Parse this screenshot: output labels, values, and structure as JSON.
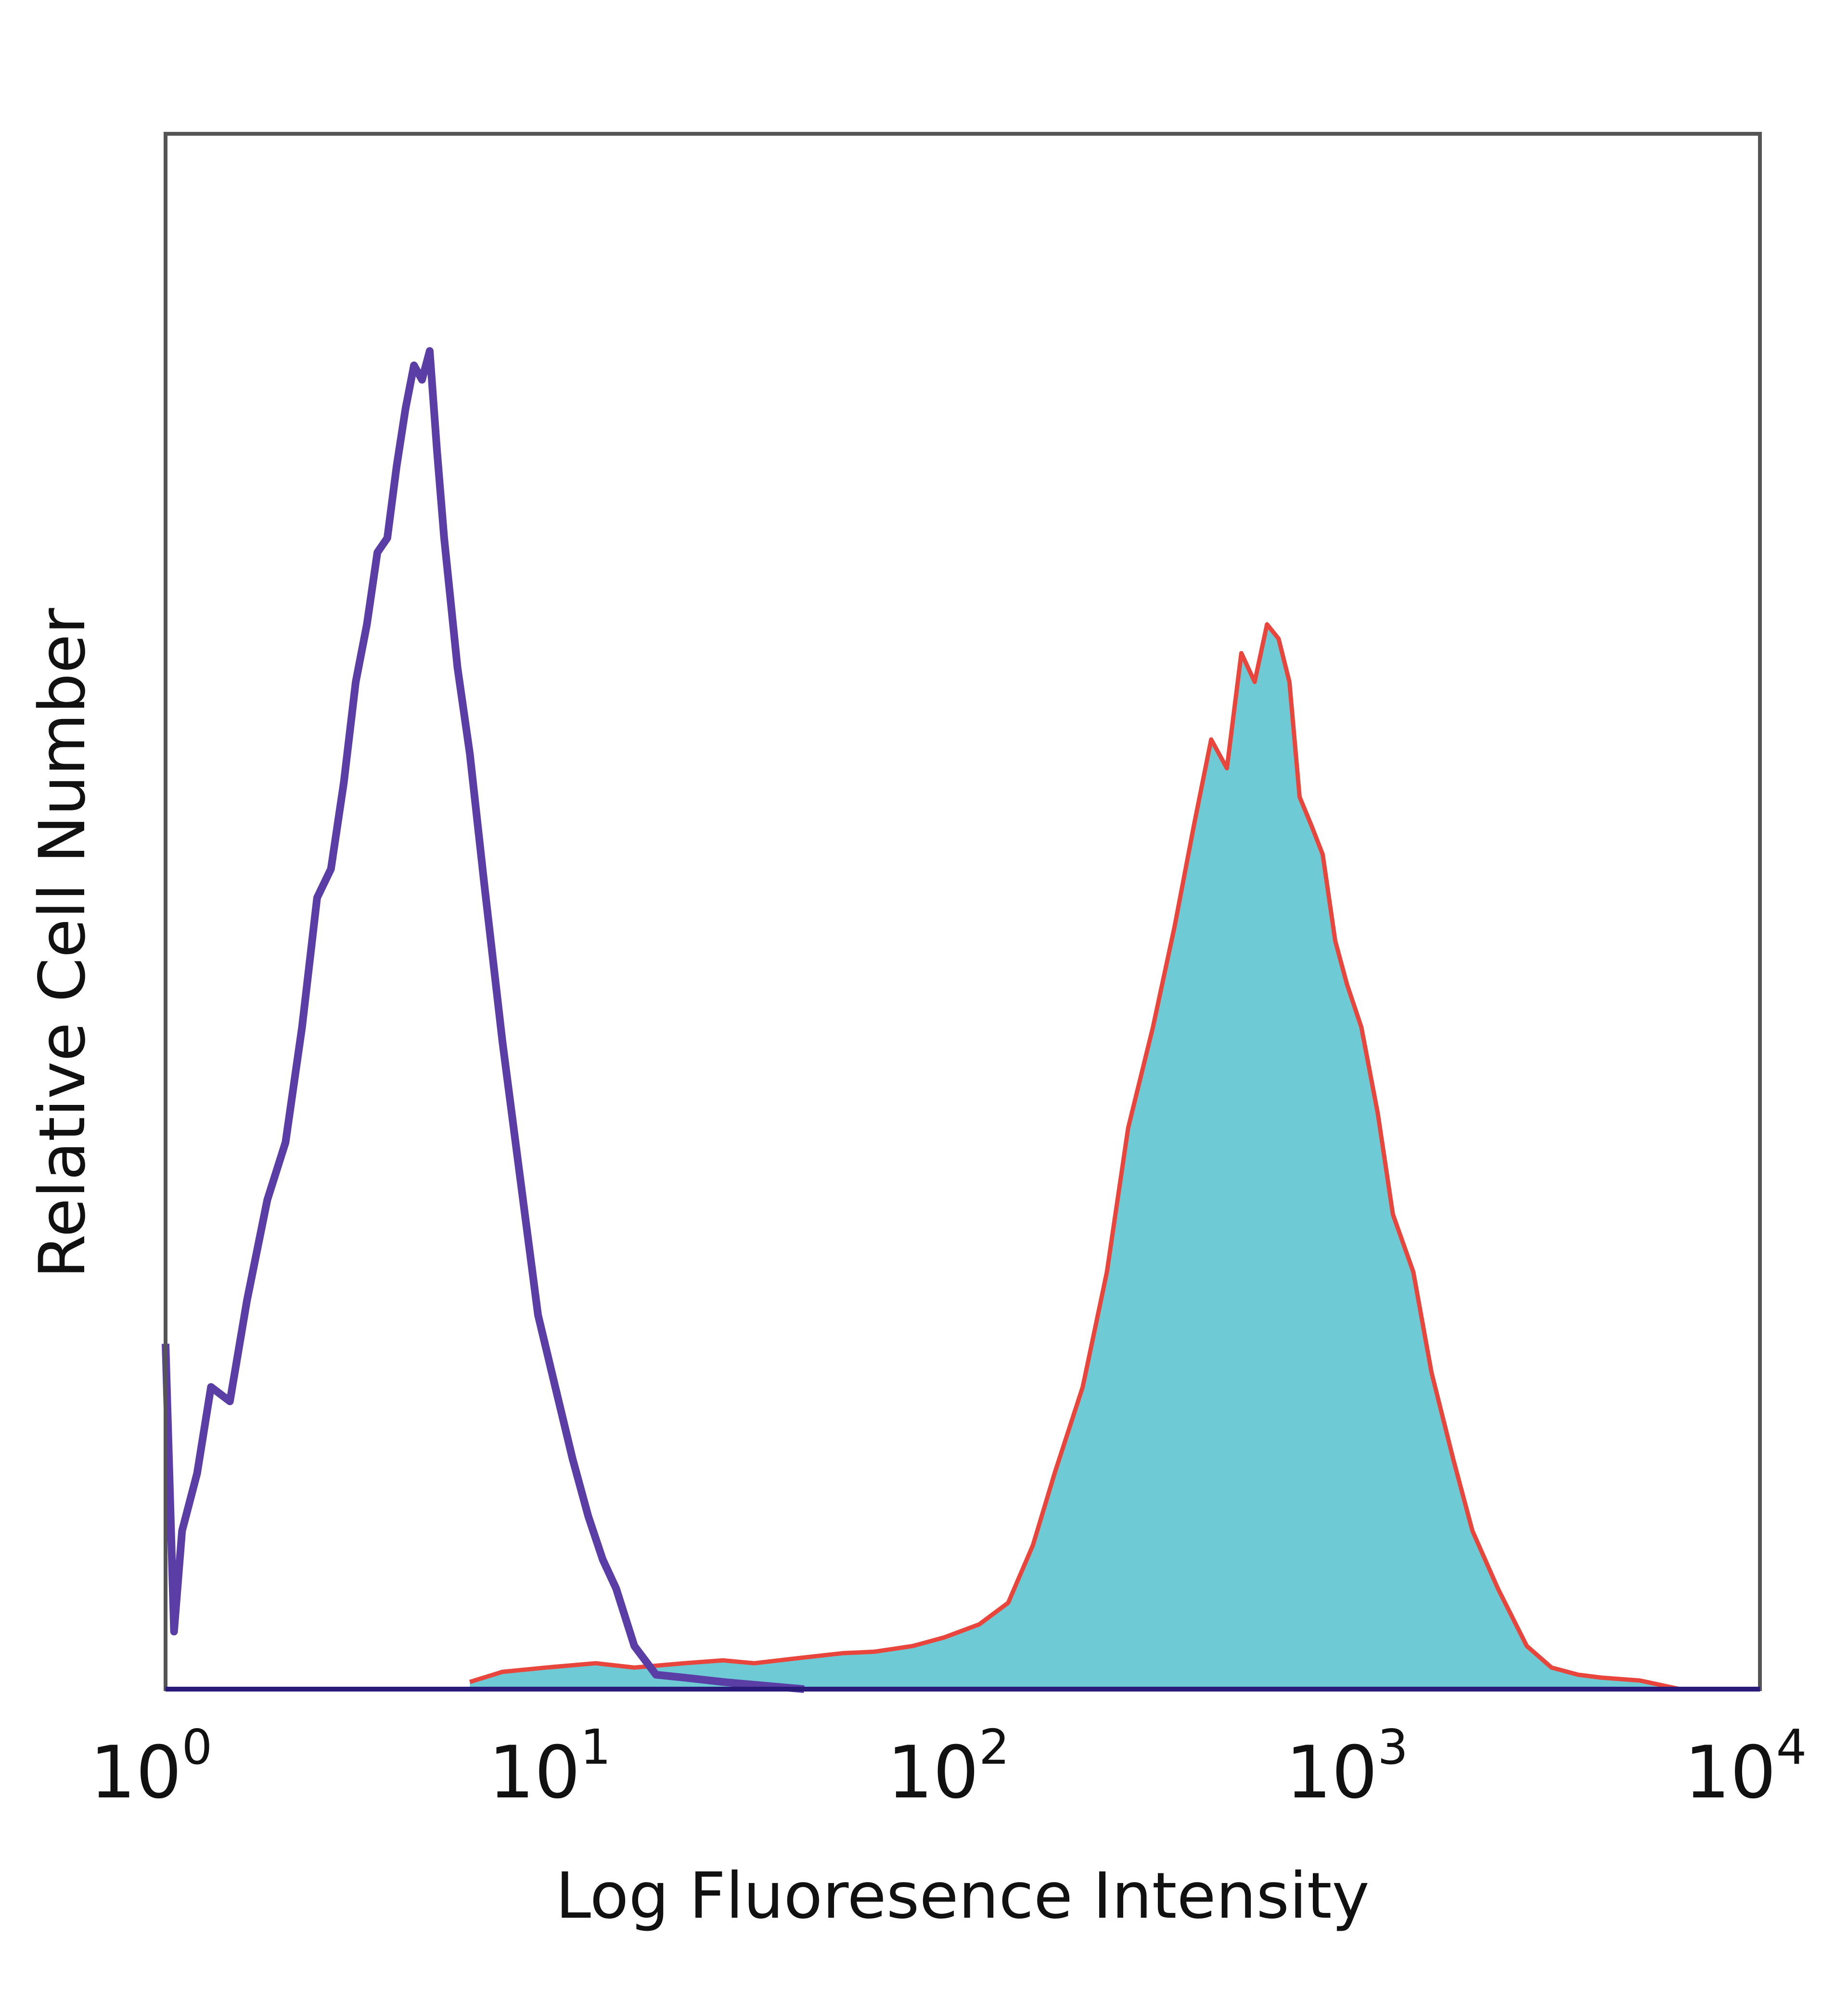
{
  "chart_data": {
    "type": "area",
    "title": "",
    "xlabel": "Log Fluoresence Intensity",
    "ylabel": "Relative Cell Number",
    "x_scale": "log",
    "xlim": [
      1,
      10000
    ],
    "ylim": [
      0,
      100
    ],
    "grid": false,
    "legend": "none",
    "x_ticks": [
      {
        "base": "10",
        "exp": "0"
      },
      {
        "base": "10",
        "exp": "1"
      },
      {
        "base": "10",
        "exp": "2"
      },
      {
        "base": "10",
        "exp": "3"
      },
      {
        "base": "10",
        "exp": "4"
      }
    ],
    "series": [
      {
        "style": "outline",
        "color": "#5a3ea6",
        "x": [
          1.0,
          1.05,
          1.1,
          1.2,
          1.3,
          1.45,
          1.6,
          1.8,
          2.0,
          2.2,
          2.4,
          2.6,
          2.8,
          3.0,
          3.2,
          3.4,
          3.6,
          3.8,
          4.0,
          4.2,
          4.4,
          4.6,
          4.8,
          5.0,
          5.4,
          5.8,
          6.3,
          7.0,
          7.8,
          8.6,
          9.5,
          10.5,
          11.5,
          12.5,
          13.5,
          15.0,
          17.0,
          20.0,
          25.0,
          30.0,
          40.0
        ],
        "y": [
          24,
          4,
          11,
          15,
          21,
          20,
          27,
          34,
          38,
          46,
          55,
          57,
          63,
          70,
          74,
          79,
          80,
          85,
          89,
          92,
          91,
          93,
          86,
          80,
          71,
          65,
          56,
          45,
          35,
          26,
          21,
          16,
          12,
          9,
          7,
          3,
          1,
          0.8,
          0.5,
          0.3,
          0
        ]
      },
      {
        "style": "filled",
        "color": "#6ecbd6",
        "edge_color": "#e8463c",
        "x": [
          5.8,
          7.0,
          9.0,
          12.0,
          15.0,
          20.0,
          25.0,
          30.0,
          40.0,
          50.0,
          60.0,
          75.0,
          90.0,
          110.0,
          130.0,
          150.0,
          170.0,
          200.0,
          230.0,
          260.0,
          300.0,
          340.0,
          380.0,
          420.0,
          460.0,
          500.0,
          540.0,
          580.0,
          620.0,
          660.0,
          700.0,
          750.0,
          800.0,
          860.0,
          920.0,
          1000.0,
          1100.0,
          1200.0,
          1350.0,
          1500.0,
          1700.0,
          1900.0,
          2200.0,
          2600.0,
          3000.0,
          3500.0,
          4000.0,
          5000.0,
          6300.0
        ],
        "y": [
          0.5,
          1.2,
          1.5,
          1.8,
          1.5,
          1.8,
          2.0,
          1.8,
          2.2,
          2.5,
          2.6,
          3.0,
          3.6,
          4.5,
          6.0,
          10.0,
          15.0,
          21.0,
          29.0,
          39.0,
          46.0,
          53.0,
          60.0,
          66.0,
          64.0,
          72.0,
          70.0,
          74.0,
          73.0,
          70.0,
          62.0,
          60.0,
          58.0,
          52.0,
          49.0,
          46.0,
          40.0,
          33.0,
          29.0,
          22.0,
          16.0,
          11.0,
          7.0,
          3.0,
          1.5,
          1.0,
          0.8,
          0.6,
          0.0
        ]
      }
    ]
  }
}
